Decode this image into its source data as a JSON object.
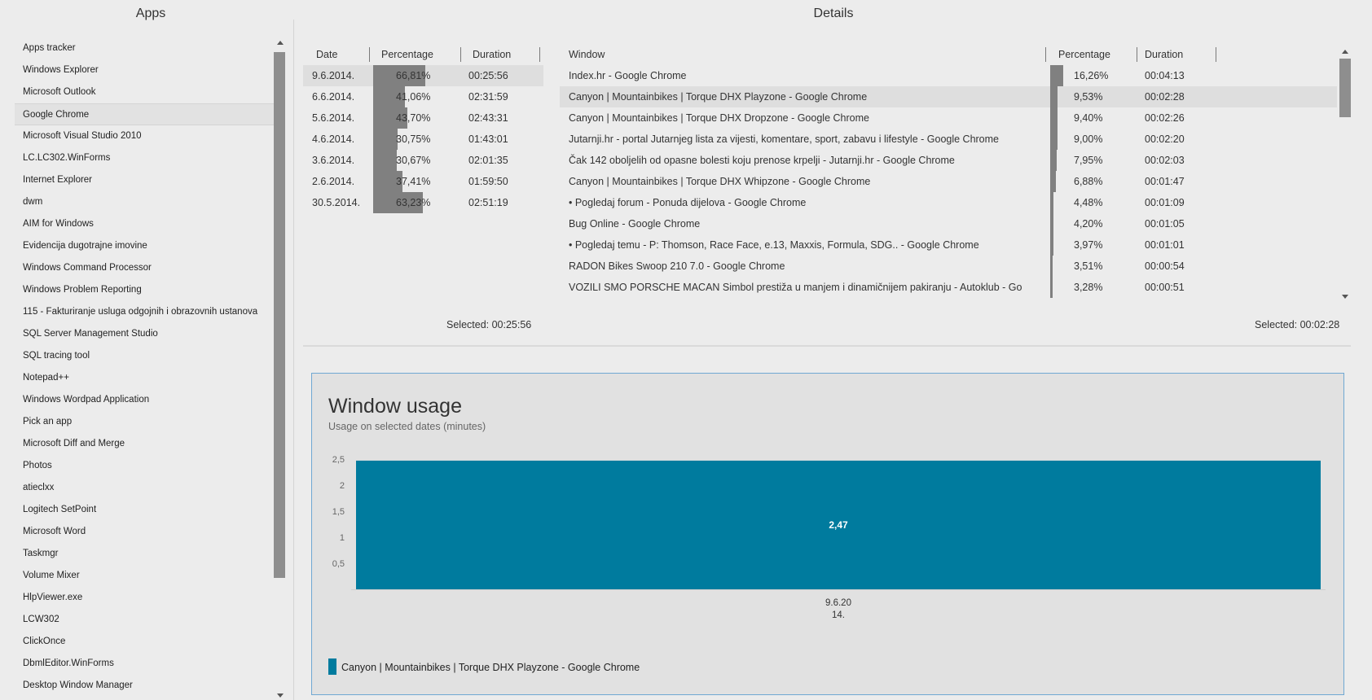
{
  "apps": {
    "title": "Apps",
    "items": [
      "Apps tracker",
      "Windows Explorer",
      "Microsoft Outlook",
      "Google Chrome",
      "Microsoft Visual Studio 2010",
      "LC.LC302.WinForms",
      "Internet Explorer",
      "dwm",
      "AIM for Windows",
      "Evidencija dugotrajne imovine",
      "Windows Command Processor",
      "Windows Problem Reporting",
      "115 - Fakturiranje usluga odgojnih i obrazovnih ustanova",
      "SQL Server Management Studio",
      "SQL tracing tool",
      "Notepad++",
      "Windows Wordpad Application",
      "Pick an app",
      "Microsoft Diff and Merge",
      "Photos",
      "atieclxx",
      "Logitech SetPoint",
      "Microsoft Word",
      "Taskmgr",
      "Volume Mixer",
      "HlpViewer.exe",
      "LCW302",
      "ClickOnce",
      "DbmlEditor.WinForms",
      "Desktop Window Manager"
    ],
    "selected_index": 3
  },
  "details": {
    "title": "Details",
    "dates_table": {
      "headers": {
        "date": "Date",
        "percentage": "Percentage",
        "duration": "Duration"
      },
      "rows": [
        {
          "date": "9.6.2014.",
          "percentage": "66,81%",
          "pct": 66.81,
          "duration": "00:25:56"
        },
        {
          "date": "6.6.2014.",
          "percentage": "41,06%",
          "pct": 41.06,
          "duration": "02:31:59"
        },
        {
          "date": "5.6.2014.",
          "percentage": "43,70%",
          "pct": 43.7,
          "duration": "02:43:31"
        },
        {
          "date": "4.6.2014.",
          "percentage": "30,75%",
          "pct": 30.75,
          "duration": "01:43:01"
        },
        {
          "date": "3.6.2014.",
          "percentage": "30,67%",
          "pct": 30.67,
          "duration": "02:01:35"
        },
        {
          "date": "2.6.2014.",
          "percentage": "37,41%",
          "pct": 37.41,
          "duration": "01:59:50"
        },
        {
          "date": "30.5.2014.",
          "percentage": "63,23%",
          "pct": 63.23,
          "duration": "02:51:19"
        }
      ],
      "selected_index": 0,
      "selected_label": "Selected: 00:25:56"
    },
    "windows_table": {
      "headers": {
        "window": "Window",
        "percentage": "Percentage",
        "duration": "Duration"
      },
      "rows": [
        {
          "window": "Index.hr - Google Chrome",
          "percentage": "16,26%",
          "pct": 16.26,
          "duration": "00:04:13"
        },
        {
          "window": "Canyon | Mountainbikes | Torque DHX Playzone - Google Chrome",
          "percentage": "9,53%",
          "pct": 9.53,
          "duration": "00:02:28"
        },
        {
          "window": "Canyon | Mountainbikes | Torque DHX Dropzone - Google Chrome",
          "percentage": "9,40%",
          "pct": 9.4,
          "duration": "00:02:26"
        },
        {
          "window": "Jutarnji.hr - portal Jutarnjeg lista za vijesti, komentare, sport, zabavu i lifestyle - Google Chrome",
          "percentage": "9,00%",
          "pct": 9.0,
          "duration": "00:02:20"
        },
        {
          "window": "Čak 142 oboljelih od opasne bolesti koju prenose krpelji - Jutarnji.hr - Google Chrome",
          "percentage": "7,95%",
          "pct": 7.95,
          "duration": "00:02:03"
        },
        {
          "window": "Canyon | Mountainbikes | Torque DHX Whipzone - Google Chrome",
          "percentage": "6,88%",
          "pct": 6.88,
          "duration": "00:01:47"
        },
        {
          "window": "• Pogledaj forum - Ponuda dijelova - Google Chrome",
          "percentage": "4,48%",
          "pct": 4.48,
          "duration": "00:01:09"
        },
        {
          "window": "Bug Online - Google Chrome",
          "percentage": "4,20%",
          "pct": 4.2,
          "duration": "00:01:05"
        },
        {
          "window": "• Pogledaj temu - P: Thomson, Race Face, e.13, Maxxis, Formula, SDG.. - Google Chrome",
          "percentage": "3,97%",
          "pct": 3.97,
          "duration": "00:01:01"
        },
        {
          "window": "RADON Bikes Swoop 210 7.0 - Google Chrome",
          "percentage": "3,51%",
          "pct": 3.51,
          "duration": "00:00:54"
        },
        {
          "window": "VOZILI SMO PORSCHE MACAN Simbol prestiža u manjem i dinamičnijem pakiranju - Autoklub - Go",
          "percentage": "3,28%",
          "pct": 3.28,
          "duration": "00:00:51"
        }
      ],
      "selected_index": 1,
      "selected_label": "Selected: 00:02:28"
    }
  },
  "chart_data": {
    "type": "bar",
    "title": "Window usage",
    "subtitle": "Usage on selected dates (minutes)",
    "categories": [
      "9.6.20\n14."
    ],
    "series": [
      {
        "name": "Canyon | Mountainbikes | Torque DHX Playzone - Google Chrome",
        "values": [
          2.47
        ],
        "color": "#007b9e"
      }
    ],
    "data_labels": [
      "2,47"
    ],
    "yticks": [
      "0,5",
      "1",
      "1,5",
      "2",
      "2,5"
    ],
    "ytick_values": [
      0.5,
      1,
      1.5,
      2,
      2.5
    ],
    "ylim": [
      0,
      2.5
    ],
    "legend_position": "bottom-left",
    "grid": false
  }
}
